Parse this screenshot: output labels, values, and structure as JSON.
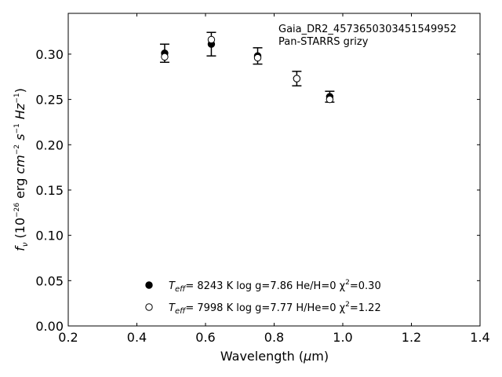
{
  "chart_data": {
    "type": "scatter",
    "xlabel": "Wavelength (μm)",
    "ylabel": "fν (10⁻²⁶ erg cm⁻² s⁻¹ Hz⁻¹)",
    "xlim": [
      0.2,
      1.4
    ],
    "ylim": [
      0.0,
      0.345
    ],
    "xticks": [
      0.2,
      0.4,
      0.6,
      0.8,
      1.0,
      1.2,
      1.4
    ],
    "xtick_labels": [
      "0.2",
      "0.4",
      "0.6",
      "0.8",
      "1.0",
      "1.2",
      "1.4"
    ],
    "yticks": [
      0.0,
      0.05,
      0.1,
      0.15,
      0.2,
      0.25,
      0.3
    ],
    "ytick_labels": [
      "0.00",
      "0.05",
      "0.10",
      "0.15",
      "0.20",
      "0.25",
      "0.30"
    ],
    "grid": false,
    "annotation": [
      "Gaia_DR2_4573650303451549952",
      "Pan-STARRS grizy"
    ],
    "series": [
      {
        "name": "Teff=  8243 K  log g=7.86  He/H=0  χ²=0.30",
        "marker": "filled-circle",
        "x": [
          0.481,
          0.617,
          0.752,
          0.866,
          0.962
        ],
        "y": [
          0.301,
          0.311,
          0.298,
          0.273,
          0.253
        ],
        "yerr": [
          0.01,
          0.013,
          0.009,
          0.008,
          0.006
        ]
      },
      {
        "name": "Teff=  7998 K  log g=7.77  H/He=0  χ²=1.22",
        "marker": "open-circle",
        "x": [
          0.481,
          0.617,
          0.752,
          0.866,
          0.962
        ],
        "y": [
          0.297,
          0.316,
          0.296,
          0.273,
          0.25
        ]
      }
    ],
    "legend": {
      "placement": "lower-center",
      "entries": [
        {
          "prefix": "T",
          "sub": "eff",
          "rest": "=  8243 K  log g=7.86  He/H=0  χ",
          "sup": "2",
          "tail": "=0.30"
        },
        {
          "prefix": "T",
          "sub": "eff",
          "rest": "=  7998 K  log g=7.77  H/He=0  χ",
          "sup": "2",
          "tail": "=1.22"
        }
      ]
    }
  }
}
